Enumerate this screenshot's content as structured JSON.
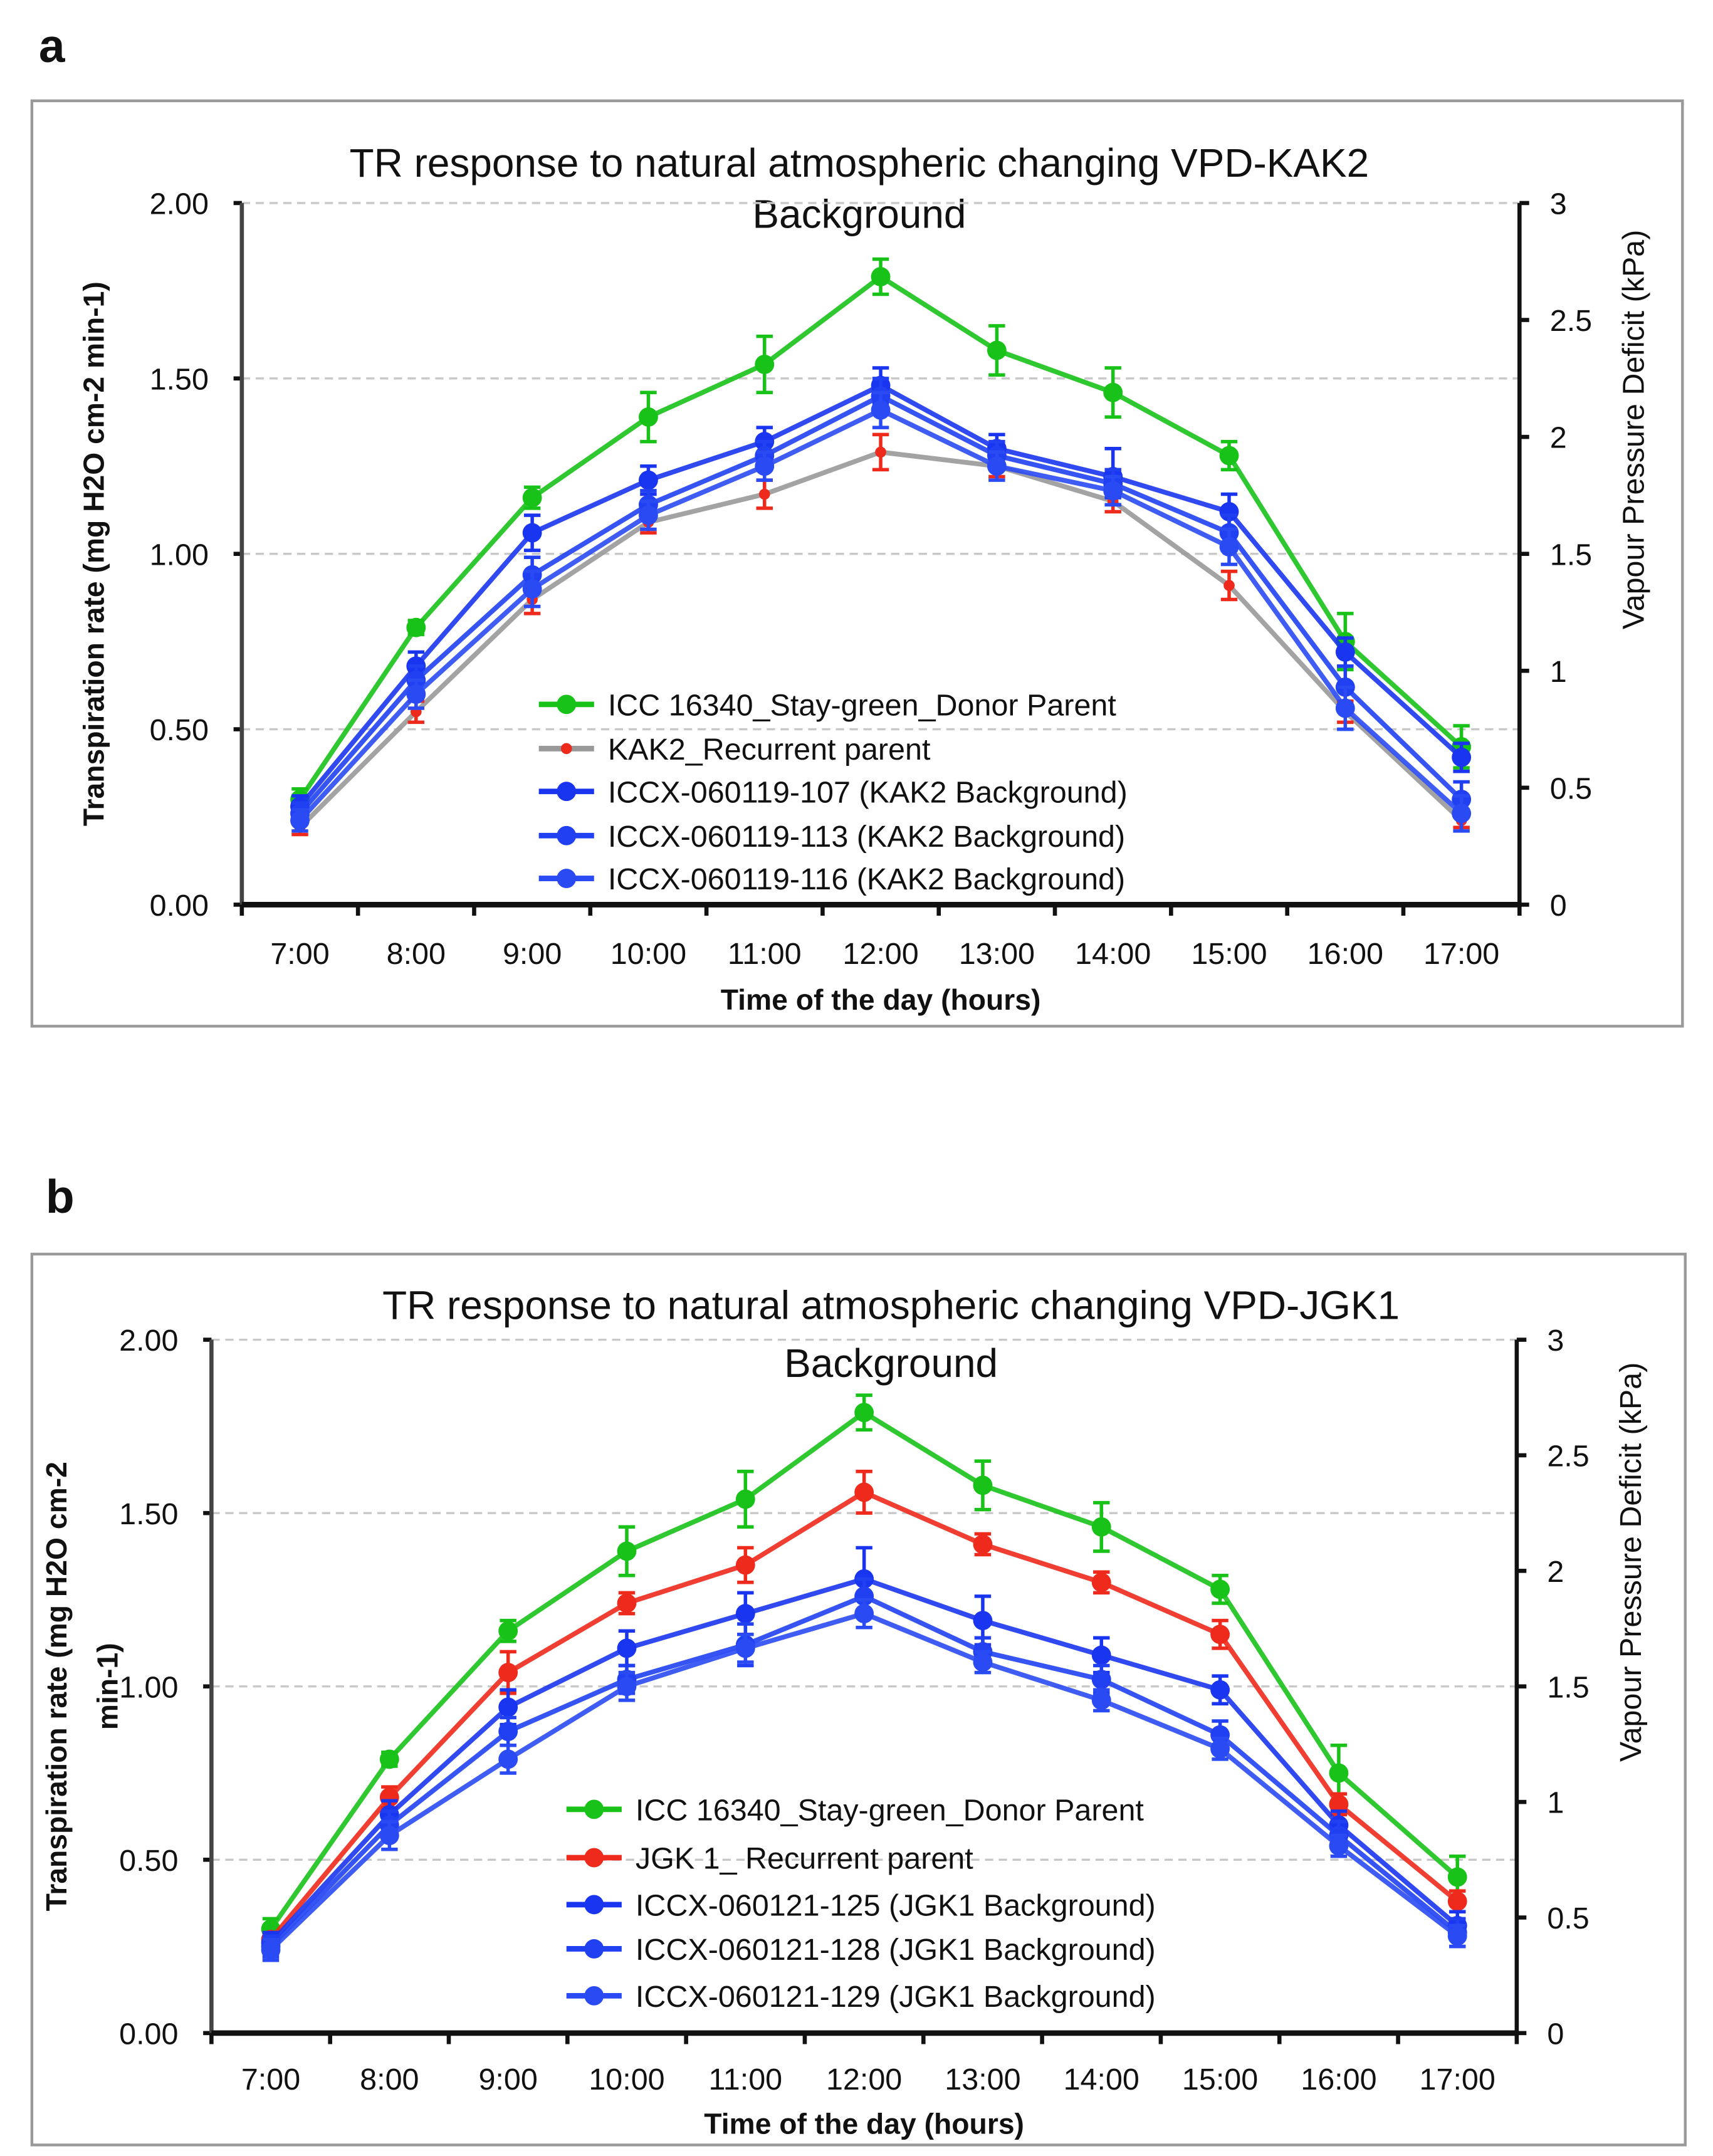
{
  "chart_data": [
    {
      "type": "line",
      "panel_label": "a",
      "title": [
        "TR response to natural atmospheric changing VPD-KAK2",
        "Background"
      ],
      "xlabel": "Time of the day (hours)",
      "ylabel": [
        "Transpiration rate (mg H2O cm-2 min-1)"
      ],
      "y2label": "Vapour Pressure Deficit (kPa)",
      "categories": [
        "7:00",
        "8:00",
        "9:00",
        "10:00",
        "11:00",
        "12:00",
        "13:00",
        "14:00",
        "15:00",
        "16:00",
        "17:00"
      ],
      "ylim": [
        0,
        2
      ],
      "yticks": [
        "0.00",
        "0.50",
        "1.00",
        "1.50",
        "2.00"
      ],
      "y2lim": [
        0,
        3
      ],
      "y2ticks": [
        "0",
        "0.5",
        "1",
        "1.5",
        "2",
        "2.5",
        "3"
      ],
      "grid": true,
      "legend_position": "bottom-center",
      "series": [
        {
          "name": "ICC 16340_Stay-green_Donor Parent",
          "color": "#19c219",
          "marker": "#19c219",
          "values": [
            0.3,
            0.79,
            1.16,
            1.39,
            1.54,
            1.79,
            1.58,
            1.46,
            1.28,
            0.75,
            0.45
          ],
          "err": [
            0.03,
            0.02,
            0.03,
            0.07,
            0.08,
            0.05,
            0.07,
            0.07,
            0.04,
            0.08,
            0.06
          ]
        },
        {
          "name": "KAK2_Recurrent parent",
          "color": "#999999",
          "marker": "#ee2a1c",
          "values": [
            0.22,
            0.55,
            0.87,
            1.09,
            1.17,
            1.29,
            1.25,
            1.15,
            0.91,
            0.55,
            0.24
          ],
          "err": [
            0.02,
            0.03,
            0.04,
            0.03,
            0.04,
            0.05,
            0.03,
            0.03,
            0.04,
            0.03,
            0.02
          ]
        },
        {
          "name": "ICCX-060119-107 (KAK2 Background)",
          "color": "#1a35f0",
          "marker": "#1a35f0",
          "values": [
            0.28,
            0.68,
            1.06,
            1.21,
            1.32,
            1.48,
            1.3,
            1.22,
            1.12,
            0.72,
            0.42
          ],
          "err": [
            0.03,
            0.04,
            0.05,
            0.04,
            0.04,
            0.05,
            0.04,
            0.08,
            0.05,
            0.04,
            0.04
          ]
        },
        {
          "name": "ICCX-060119-113 (KAK2 Background)",
          "color": "#2040f2",
          "marker": "#2040f2",
          "values": [
            0.26,
            0.64,
            0.94,
            1.14,
            1.28,
            1.45,
            1.28,
            1.2,
            1.06,
            0.62,
            0.3
          ],
          "err": [
            0.03,
            0.04,
            0.05,
            0.04,
            0.04,
            0.05,
            0.04,
            0.04,
            0.05,
            0.06,
            0.05
          ]
        },
        {
          "name": "ICCX-060119-116 (KAK2 Background)",
          "color": "#2a4af4",
          "marker": "#2a4af4",
          "values": [
            0.24,
            0.6,
            0.9,
            1.11,
            1.25,
            1.41,
            1.25,
            1.18,
            1.02,
            0.56,
            0.26
          ],
          "err": [
            0.03,
            0.04,
            0.05,
            0.04,
            0.04,
            0.05,
            0.04,
            0.04,
            0.05,
            0.06,
            0.05
          ]
        }
      ]
    },
    {
      "type": "line",
      "panel_label": "b",
      "title": [
        "TR response to natural atmospheric changing VPD-JGK1",
        "Background"
      ],
      "xlabel": "Time of the day (hours)",
      "ylabel": [
        "Transpiration rate (mg H2O cm-2",
        "min-1)"
      ],
      "y2label": "Vapour Pressure Deficit (kPa)",
      "categories": [
        "7:00",
        "8:00",
        "9:00",
        "10:00",
        "11:00",
        "12:00",
        "13:00",
        "14:00",
        "15:00",
        "16:00",
        "17:00"
      ],
      "ylim": [
        0,
        2
      ],
      "yticks": [
        "0.00",
        "0.50",
        "1.00",
        "1.50",
        "2.00"
      ],
      "y2lim": [
        0,
        3
      ],
      "y2ticks": [
        "0",
        "0.5",
        "1",
        "1.5",
        "2",
        "2.5",
        "3"
      ],
      "grid": true,
      "legend_position": "bottom-center",
      "series": [
        {
          "name": "ICC 16340_Stay-green_Donor Parent",
          "color": "#19c219",
          "marker": "#19c219",
          "values": [
            0.3,
            0.79,
            1.16,
            1.39,
            1.54,
            1.79,
            1.58,
            1.46,
            1.28,
            0.75,
            0.45
          ],
          "err": [
            0.03,
            0.02,
            0.03,
            0.07,
            0.08,
            0.05,
            0.07,
            0.07,
            0.04,
            0.08,
            0.06
          ]
        },
        {
          "name": "JGK 1_ Recurrent parent",
          "color": "#ee2a1c",
          "marker": "#ee2a1c",
          "values": [
            0.27,
            0.68,
            1.04,
            1.24,
            1.35,
            1.56,
            1.41,
            1.3,
            1.15,
            0.66,
            0.38
          ],
          "err": [
            0.02,
            0.03,
            0.06,
            0.03,
            0.05,
            0.06,
            0.03,
            0.03,
            0.04,
            0.03,
            0.03
          ]
        },
        {
          "name": "ICCX-060121-125 (JGK1 Background)",
          "color": "#1a35f0",
          "marker": "#1a35f0",
          "values": [
            0.26,
            0.63,
            0.94,
            1.11,
            1.21,
            1.31,
            1.19,
            1.09,
            0.99,
            0.6,
            0.31
          ],
          "err": [
            0.03,
            0.04,
            0.05,
            0.05,
            0.06,
            0.09,
            0.07,
            0.05,
            0.04,
            0.04,
            0.04
          ]
        },
        {
          "name": "ICCX-060121-128 (JGK1 Background)",
          "color": "#2040f2",
          "marker": "#2040f2",
          "values": [
            0.25,
            0.6,
            0.87,
            1.02,
            1.12,
            1.26,
            1.1,
            1.02,
            0.86,
            0.57,
            0.29
          ],
          "err": [
            0.03,
            0.04,
            0.04,
            0.04,
            0.06,
            0.05,
            0.04,
            0.04,
            0.04,
            0.04,
            0.04
          ]
        },
        {
          "name": "ICCX-060121-129 (JGK1 Background)",
          "color": "#2a4af4",
          "marker": "#2a4af4",
          "values": [
            0.24,
            0.57,
            0.79,
            1.0,
            1.11,
            1.21,
            1.07,
            0.96,
            0.82,
            0.54,
            0.28
          ],
          "err": [
            0.03,
            0.04,
            0.04,
            0.04,
            0.04,
            0.04,
            0.03,
            0.03,
            0.03,
            0.03,
            0.03
          ]
        }
      ]
    }
  ]
}
